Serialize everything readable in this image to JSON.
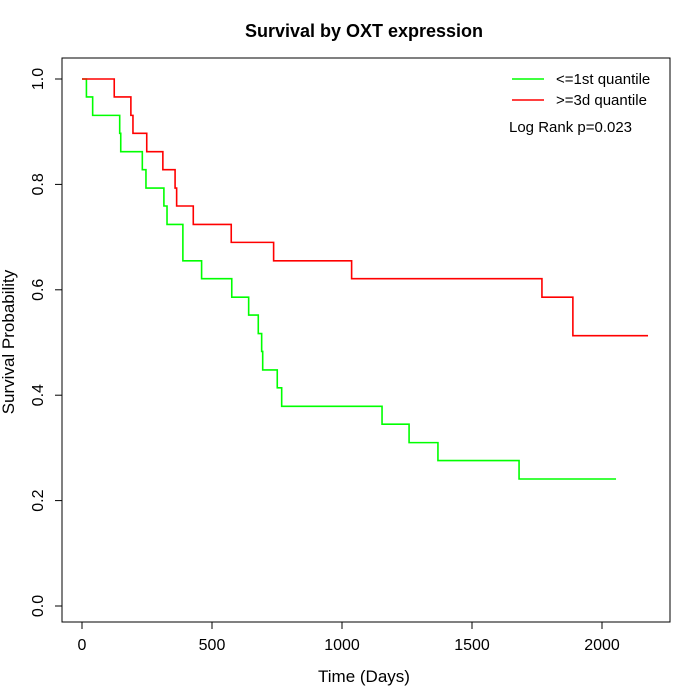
{
  "chart_data": {
    "type": "line",
    "title": "Survival by OXT expression",
    "xlabel": "Time (Days)",
    "ylabel": "Survival Probability",
    "xlim": [
      0,
      2177
    ],
    "ylim": [
      0,
      1
    ],
    "xticks": [
      0,
      500,
      1000,
      1500,
      2000
    ],
    "yticks": [
      0.0,
      0.2,
      0.4,
      0.6,
      0.8,
      1.0
    ],
    "xtick_labels": [
      "0",
      "500",
      "1000",
      "1500",
      "2000"
    ],
    "ytick_labels": [
      "0.0",
      "0.2",
      "0.4",
      "0.6",
      "0.8",
      "1.0"
    ],
    "legend_position": "top-right",
    "annotation": "Log Rank p=0.023",
    "series": [
      {
        "name": "<=1st quantile",
        "color": "#00ff00",
        "x": [
          0,
          17,
          41,
          145,
          149,
          232,
          246,
          315,
          327,
          388,
          460,
          576,
          641,
          678,
          691,
          695,
          751,
          768,
          1154,
          1258,
          1369,
          1681,
          2054
        ],
        "y": [
          1.0,
          0.966,
          0.931,
          0.897,
          0.862,
          0.828,
          0.793,
          0.759,
          0.724,
          0.655,
          0.621,
          0.586,
          0.552,
          0.517,
          0.483,
          0.448,
          0.414,
          0.379,
          0.345,
          0.31,
          0.276,
          0.241,
          0.241
        ]
      },
      {
        "name": ">=3d quantile",
        "color": "#ff0000",
        "x": [
          0,
          124,
          188,
          196,
          249,
          311,
          358,
          364,
          428,
          574,
          737,
          1037,
          1769,
          1888,
          2177
        ],
        "y": [
          1.0,
          0.966,
          0.931,
          0.897,
          0.862,
          0.828,
          0.793,
          0.759,
          0.724,
          0.69,
          0.655,
          0.621,
          0.586,
          0.513,
          0.513
        ]
      }
    ]
  }
}
